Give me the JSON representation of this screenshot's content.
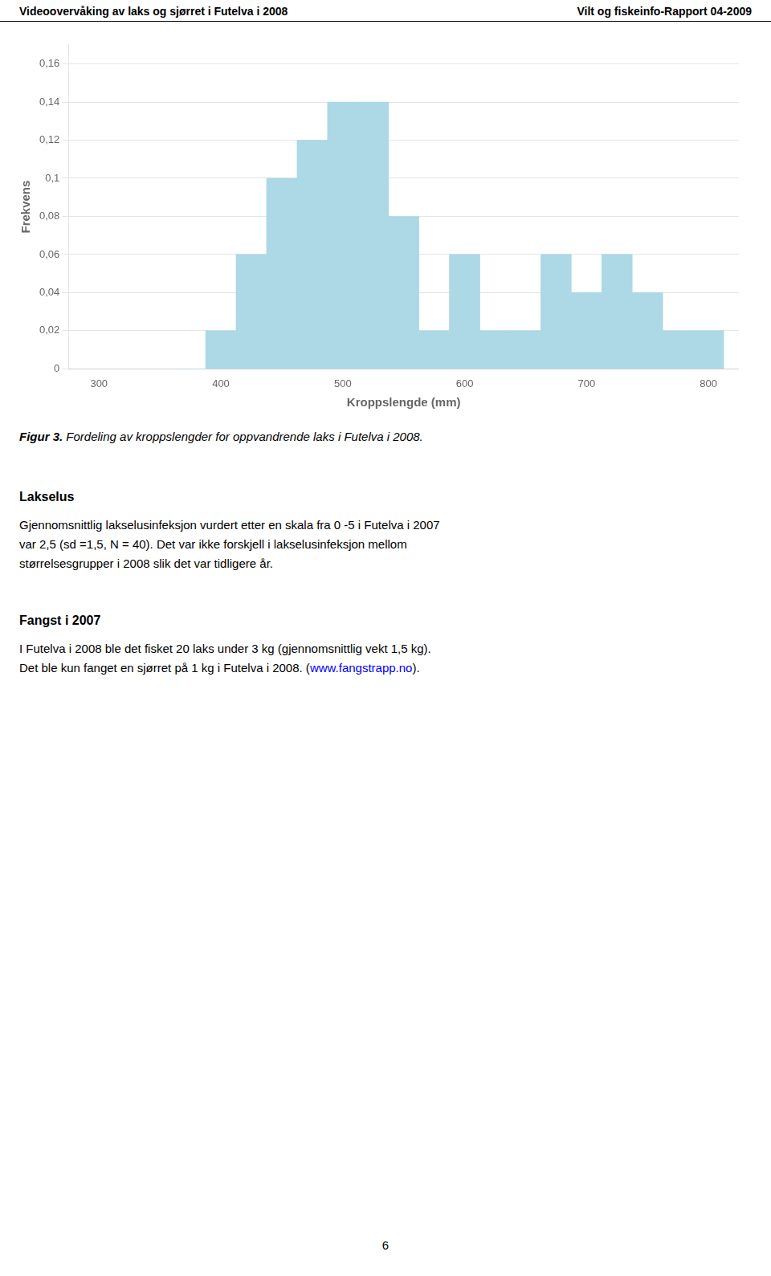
{
  "header_left": "Videoovervåking av laks og sjørret i Futelva i 2008",
  "header_right": "Vilt og fiskeinfo-Rapport 04-2009",
  "chart_data": {
    "type": "histogram",
    "xlabel": "Kroppslengde (mm)",
    "ylabel": "Frekvens",
    "bins": [
      362.5,
      387.5,
      412.5,
      437.5,
      462.5,
      487.5,
      512.5,
      537.5,
      562.5,
      587.5,
      612.5,
      637.5,
      662.5,
      687.5,
      712.5,
      737.5,
      762.5,
      787.5,
      812.5
    ],
    "values": [
      0.0,
      0.02,
      0.06,
      0.1,
      0.12,
      0.14,
      0.14,
      0.08,
      0.02,
      0.06,
      0.02,
      0.02,
      0.06,
      0.04,
      0.06,
      0.04,
      0.02,
      0.02
    ],
    "color": "#add8e6",
    "xlim": [
      275,
      825
    ],
    "xticks": [
      300,
      400,
      500,
      600,
      700,
      800
    ],
    "ylim": [
      0,
      0.17
    ],
    "yticks": [
      0,
      {
        "value": 0.02,
        "label": "0,02"
      },
      {
        "value": 0.04,
        "label": "0,04"
      },
      {
        "value": 0.06,
        "label": "0,06"
      },
      {
        "value": 0.08,
        "label": "0,08"
      },
      {
        "value": 0.1,
        "label": "0,1"
      },
      {
        "value": 0.12,
        "label": "0,12"
      },
      {
        "value": 0.14,
        "label": "0,14"
      },
      {
        "value": 0.16,
        "label": "0,16"
      }
    ],
    "grid": "y"
  },
  "caption": {
    "label": "Figur 3.",
    "text": "Fordeling av kroppslengder for oppvandrende laks i Futelva i 2008."
  },
  "sections": [
    {
      "title": "Lakselus",
      "lines": [
        [
          {
            "text": "Gjennomsnittlig lakselusinfeksjon vurdert etter en skala fra 0 -5 i Futelva i 2007"
          }
        ],
        [
          {
            "text": "var 2,5 (sd =1,5, N = 40). Det var ikke forskjell i lakselusinfeksjon mellom"
          }
        ],
        [
          {
            "text": "størrelsesgrupper i 2008 slik det var tidligere år."
          }
        ]
      ]
    },
    {
      "title": "Fangst i 2007",
      "lines": [
        [
          {
            "text": "I Futelva i 2008 ble det fisket 20 laks under 3 kg (gjennomsnittlig vekt 1,5 kg)."
          }
        ],
        [
          {
            "text": "Det ble kun fanget en sjørret på 1 kg i Futelva i 2008. ("
          },
          {
            "text": "www.fangstrapp.no",
            "color": "blue"
          },
          {
            "text": ")."
          }
        ]
      ]
    }
  ],
  "page_number": "6"
}
